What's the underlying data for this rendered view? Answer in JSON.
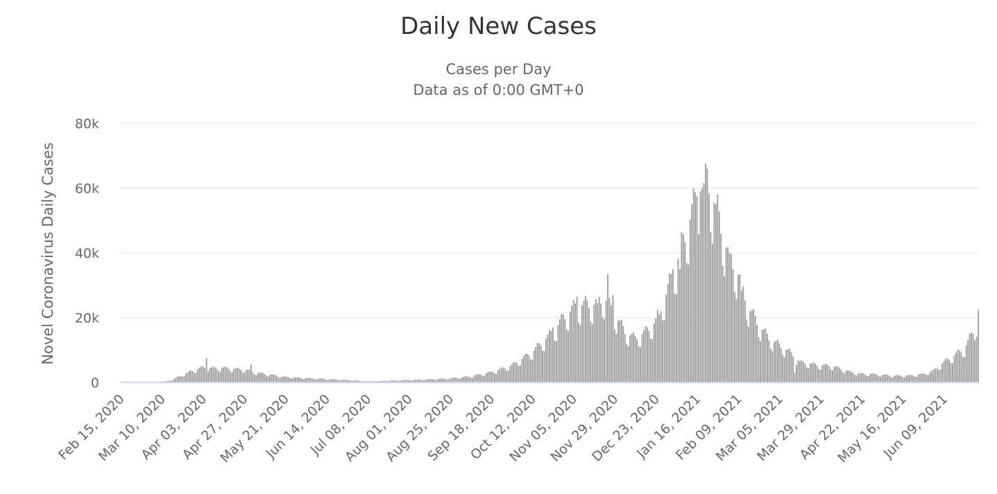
{
  "chart_data": {
    "type": "bar",
    "title": "Daily New Cases",
    "subtitle": [
      "Cases per Day",
      "Data as of 0:00 GMT+0"
    ],
    "ylabel": "Novel Coronavirus Daily Cases",
    "xlabel": "",
    "ylim": [
      0,
      80000
    ],
    "yticks": [
      0,
      20000,
      40000,
      60000,
      80000
    ],
    "ytick_labels": [
      "0",
      "20k",
      "40k",
      "60k",
      "80k"
    ],
    "grid": true,
    "legend": "none",
    "bar_color": "#999999",
    "start_date": "Feb 15, 2020",
    "end_date": "Jun 29, 2021",
    "day_count": 501,
    "x_tick_labels": [
      "Feb 15, 2020",
      "Mar 10, 2020",
      "Apr 03, 2020",
      "Apr 27, 2020",
      "May 21, 2020",
      "Jun 14, 2020",
      "Jul 08, 2020",
      "Aug 01, 2020",
      "Aug 25, 2020",
      "Sep 18, 2020",
      "Oct 12, 2020",
      "Nov 05, 2020",
      "Nov 29, 2020",
      "Dec 23, 2020",
      "Jan 16, 2021",
      "Feb 09, 2021",
      "Mar 05, 2021",
      "Mar 29, 2021",
      "Apr 22, 2021",
      "May 16, 2021",
      "Jun 09, 2021"
    ],
    "x_tick_every_days": 24,
    "series": [
      {
        "name": "Daily Cases",
        "anchor_days": [
          0,
          24,
          30,
          36,
          42,
          48,
          54,
          60,
          66,
          72,
          78,
          84,
          96,
          108,
          120,
          132,
          144,
          156,
          168,
          180,
          192,
          204,
          216,
          228,
          240,
          252,
          258,
          264,
          270,
          276,
          282,
          288,
          294,
          300,
          306,
          312,
          318,
          324,
          330,
          336,
          342,
          348,
          354,
          360,
          366,
          372,
          378,
          384,
          390,
          396,
          402,
          408,
          414,
          420,
          426,
          432,
          438,
          444,
          450,
          456,
          462,
          468,
          474,
          480,
          486,
          492,
          495,
          498,
          500
        ],
        "anchor_values": [
          0,
          0,
          800,
          2200,
          3500,
          4500,
          4200,
          4300,
          4000,
          3800,
          3000,
          2500,
          1600,
          1300,
          1000,
          700,
          300,
          500,
          700,
          900,
          1200,
          1800,
          3000,
          5000,
          9000,
          15000,
          19000,
          22000,
          23000,
          23000,
          25000,
          20000,
          15000,
          13000,
          15000,
          18000,
          26000,
          35000,
          45000,
          55000,
          60000,
          50000,
          38000,
          32000,
          22000,
          17000,
          13000,
          11000,
          9000,
          6000,
          5500,
          5000,
          5000,
          4000,
          3000,
          2500,
          2500,
          2200,
          2000,
          2000,
          2100,
          2500,
          3500,
          6000,
          8000,
          10000,
          13000,
          16000,
          20000
        ],
        "peaks": [
          {
            "day": 50,
            "value": 7500
          },
          {
            "day": 76,
            "value": 5500
          },
          {
            "day": 252,
            "value": 17000
          },
          {
            "day": 266,
            "value": 26500
          },
          {
            "day": 278,
            "value": 24500
          },
          {
            "day": 284,
            "value": 33500
          },
          {
            "day": 287,
            "value": 27000
          },
          {
            "day": 314,
            "value": 21000
          },
          {
            "day": 322,
            "value": 35000
          },
          {
            "day": 326,
            "value": 35000
          },
          {
            "day": 336,
            "value": 57500
          },
          {
            "day": 338,
            "value": 59000
          },
          {
            "day": 340,
            "value": 61500
          },
          {
            "day": 341,
            "value": 67500
          },
          {
            "day": 347,
            "value": 55000
          },
          {
            "day": 355,
            "value": 40000
          },
          {
            "day": 362,
            "value": 28500
          },
          {
            "day": 393,
            "value": 3000
          },
          {
            "day": 500,
            "value": 22500
          }
        ]
      }
    ]
  }
}
